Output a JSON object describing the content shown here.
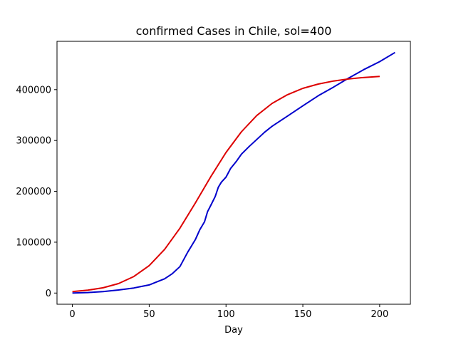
{
  "chart_data": {
    "type": "line",
    "title": "confirmed Cases in Chile, sol=400",
    "xlabel": "Day",
    "ylabel": "",
    "xlim": [
      -10,
      220
    ],
    "ylim": [
      -22000,
      495000
    ],
    "x_ticks": [
      0,
      50,
      100,
      150,
      200
    ],
    "x_tick_labels": [
      "0",
      "50",
      "100",
      "150",
      "200"
    ],
    "y_ticks": [
      0,
      100000,
      200000,
      300000,
      400000
    ],
    "y_tick_labels": [
      "0",
      "100000",
      "200000",
      "300000",
      "400000"
    ],
    "grid": false,
    "series": [
      {
        "color": "#0000cc",
        "x": [
          0,
          10,
          20,
          30,
          40,
          45,
          50,
          55,
          60,
          65,
          70,
          75,
          80,
          83,
          86,
          88,
          90,
          93,
          95,
          97,
          100,
          103,
          107,
          110,
          115,
          120,
          125,
          130,
          140,
          150,
          160,
          170,
          180,
          190,
          200,
          210
        ],
        "y": [
          0,
          1000,
          3000,
          6000,
          10000,
          13000,
          16000,
          22000,
          28000,
          38000,
          52000,
          80000,
          105000,
          125000,
          140000,
          160000,
          172000,
          190000,
          208000,
          218000,
          228000,
          245000,
          260000,
          273000,
          288000,
          302000,
          316000,
          328000,
          348000,
          368000,
          388000,
          405000,
          423000,
          440000,
          455000,
          473000
        ]
      },
      {
        "color": "#dd0000",
        "x": [
          0,
          10,
          20,
          30,
          40,
          50,
          60,
          70,
          80,
          90,
          100,
          110,
          120,
          130,
          140,
          150,
          160,
          170,
          180,
          190,
          200
        ],
        "y": [
          3000,
          5600,
          10400,
          18700,
          32500,
          54000,
          85700,
          127500,
          177000,
          228500,
          276500,
          317000,
          349000,
          373000,
          390000,
          402500,
          411000,
          417000,
          421000,
          424000,
          426000
        ]
      }
    ]
  }
}
